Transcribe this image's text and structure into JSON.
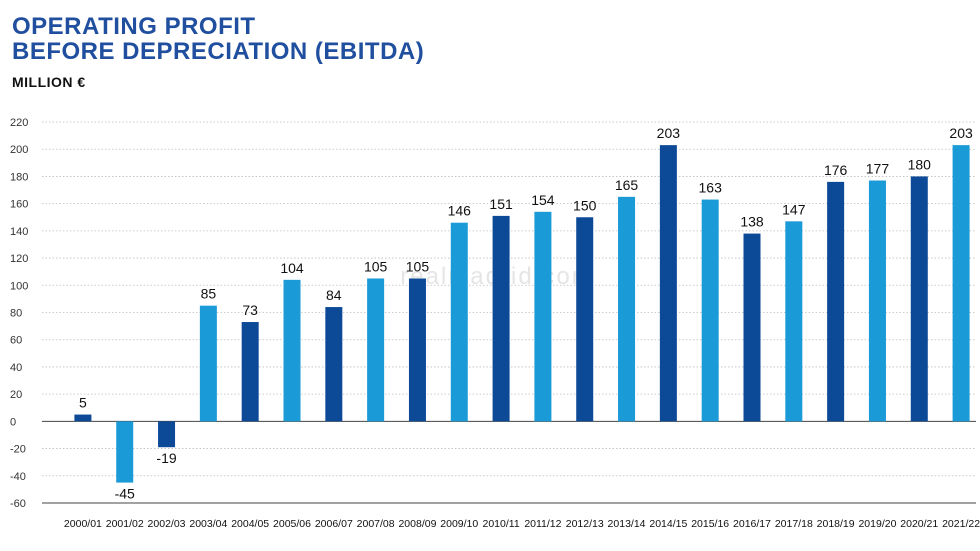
{
  "chart_data": {
    "type": "bar",
    "title_line1": "OPERATING PROFIT",
    "title_line2": "BEFORE DEPRECIATION (EBITDA)",
    "ylabel": "MILLION €",
    "watermark": "realmadrid.com",
    "ylim": [
      -60,
      220
    ],
    "yticks": [
      220,
      200,
      180,
      160,
      140,
      120,
      100,
      80,
      60,
      40,
      20,
      0,
      -20,
      -40,
      -60
    ],
    "ytick_labels": [
      "220",
      "200",
      "180",
      "160",
      "140",
      "120",
      "100",
      "80",
      "60",
      "40",
      "20",
      "0",
      "-20",
      "-40",
      "-60"
    ],
    "categories": [
      "2000/01",
      "2001/02",
      "2002/03",
      "2003/04",
      "2004/05",
      "2005/06",
      "2006/07",
      "2007/08",
      "2008/09",
      "2009/10",
      "2010/11",
      "2011/12",
      "2012/13",
      "2013/14",
      "2014/15",
      "2015/16",
      "2016/17",
      "2017/18",
      "2018/19",
      "2019/20",
      "2020/21",
      "2021/22"
    ],
    "values": [
      5,
      -45,
      -19,
      85,
      73,
      104,
      84,
      105,
      105,
      146,
      151,
      154,
      150,
      165,
      203,
      163,
      138,
      147,
      176,
      177,
      180,
      203
    ],
    "value_labels": [
      "5",
      "-45",
      "-19",
      "85",
      "73",
      "104",
      "84",
      "105",
      "105",
      "146",
      "151",
      "154",
      "150",
      "165",
      "203",
      "163",
      "138",
      "147",
      "176",
      "177",
      "180",
      "203"
    ],
    "bar_shades": [
      "dark",
      "light",
      "dark",
      "light",
      "dark",
      "light",
      "dark",
      "light",
      "dark",
      "light",
      "dark",
      "light",
      "dark",
      "light",
      "dark",
      "light",
      "dark",
      "light",
      "dark",
      "light",
      "dark",
      "light"
    ],
    "colors": {
      "dark": "#0c4a97",
      "light": "#1a9ad6",
      "grid": "#bdbdbd",
      "axis": "#444444",
      "title": "#1f4f9e"
    },
    "grid": true
  }
}
